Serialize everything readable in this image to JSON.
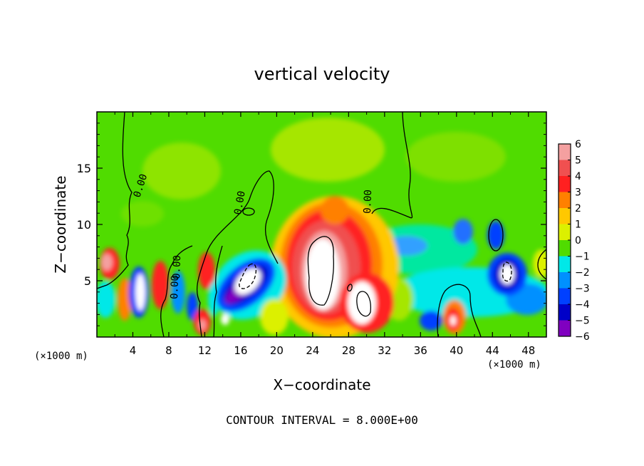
{
  "chart_data": {
    "type": "heatmap",
    "title": "vertical velocity",
    "xlabel": "X−coordinate",
    "ylabel": "Z−coordinate",
    "x_unit_left": "(×1000 m)",
    "x_unit_right": "(×1000 m)",
    "xlim": [
      0,
      50
    ],
    "ylim": [
      0,
      20
    ],
    "x_ticks": [
      4,
      8,
      12,
      16,
      20,
      24,
      28,
      32,
      36,
      40,
      44,
      48
    ],
    "y_ticks": [
      5,
      10,
      15
    ],
    "colorbar": {
      "levels": [
        6,
        5,
        4,
        3,
        2,
        1,
        0,
        -1,
        -2,
        -3,
        -4,
        -5,
        -6
      ],
      "labels": [
        "6",
        "5",
        "4",
        "3",
        "2",
        "1",
        "0",
        "−1",
        "−2",
        "−3",
        "−4",
        "−5",
        "−6"
      ],
      "colors": [
        "#f4a0a0",
        "#f05050",
        "#ff2020",
        "#ff8000",
        "#ffc800",
        "#dcf000",
        "#50dc00",
        "#00ee50",
        "#00e8e8",
        "#0090ff",
        "#0040ff",
        "#0000c8",
        "#8000c0"
      ]
    },
    "contour_labels": [
      "0.00",
      "0.00",
      "0.00",
      "0.00",
      "0.00"
    ],
    "contour_interval_text": "CONTOUR INTERVAL = 8.000E+00"
  }
}
